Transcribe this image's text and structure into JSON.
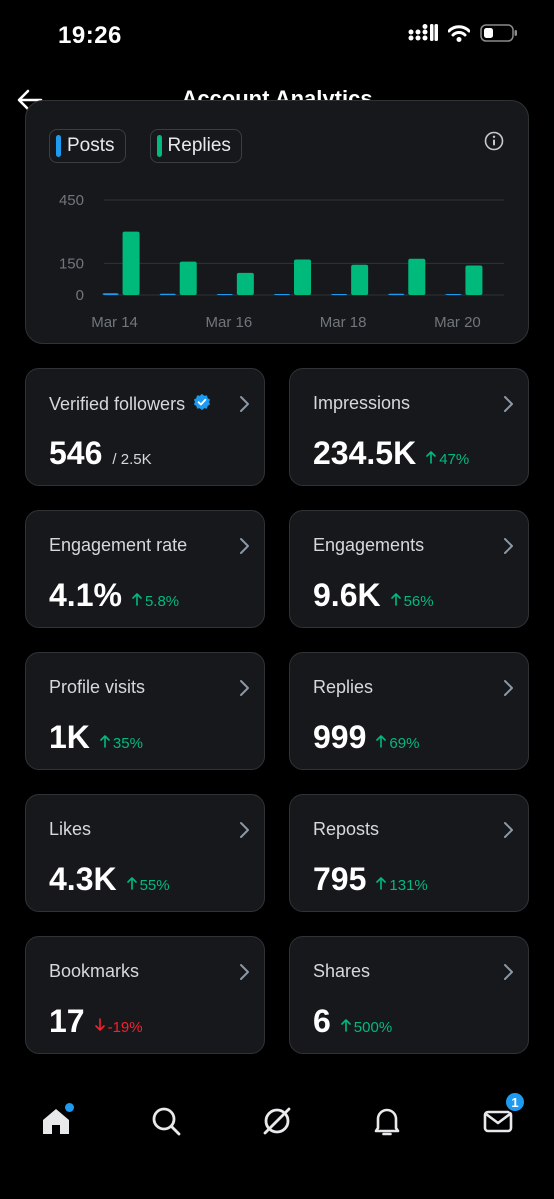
{
  "status_bar": {
    "time": "19:26"
  },
  "header": {
    "title": "Account Analytics"
  },
  "chart_data": {
    "type": "bar",
    "legend": [
      {
        "name": "Posts",
        "color": "#1d9bf0"
      },
      {
        "name": "Replies",
        "color": "#00ba7c"
      }
    ],
    "categories": [
      "Mar 14",
      "Mar 15",
      "Mar 16",
      "Mar 17",
      "Mar 18",
      "Mar 19",
      "Mar 20"
    ],
    "x_tick_labels": [
      "Mar 14",
      "Mar 16",
      "Mar 18",
      "Mar 20"
    ],
    "y_ticks": [
      "450",
      "150",
      "0"
    ],
    "ylim": [
      0,
      450
    ],
    "series": [
      {
        "name": "Posts",
        "values": [
          8,
          6,
          5,
          5,
          5,
          6,
          5
        ]
      },
      {
        "name": "Replies",
        "values": [
          300,
          158,
          105,
          168,
          143,
          172,
          140
        ]
      }
    ],
    "grid": true
  },
  "stats": [
    {
      "label": "Verified followers",
      "value": "546",
      "sub": "/ 2.5K",
      "verified": true
    },
    {
      "label": "Impressions",
      "value": "234.5K",
      "delta": "47%",
      "direction": "up"
    },
    {
      "label": "Engagement rate",
      "value": "4.1%",
      "delta": "5.8%",
      "direction": "up"
    },
    {
      "label": "Engagements",
      "value": "9.6K",
      "delta": "56%",
      "direction": "up"
    },
    {
      "label": "Profile visits",
      "value": "1K",
      "delta": "35%",
      "direction": "up"
    },
    {
      "label": "Replies",
      "value": "999",
      "delta": "69%",
      "direction": "up"
    },
    {
      "label": "Likes",
      "value": "4.3K",
      "delta": "55%",
      "direction": "up"
    },
    {
      "label": "Reposts",
      "value": "795",
      "delta": "131%",
      "direction": "up"
    },
    {
      "label": "Bookmarks",
      "value": "17",
      "delta": "-19%",
      "direction": "down"
    },
    {
      "label": "Shares",
      "value": "6",
      "delta": "500%",
      "direction": "up"
    }
  ],
  "bottom_nav": {
    "items": [
      "home-icon",
      "search-icon",
      "grok-icon",
      "notifications-icon",
      "messages-icon"
    ],
    "messages_badge": "1"
  },
  "colors": {
    "accent": "#1d9bf0",
    "up": "#00ba7c",
    "down": "#f4212e",
    "card": "#16181c"
  }
}
